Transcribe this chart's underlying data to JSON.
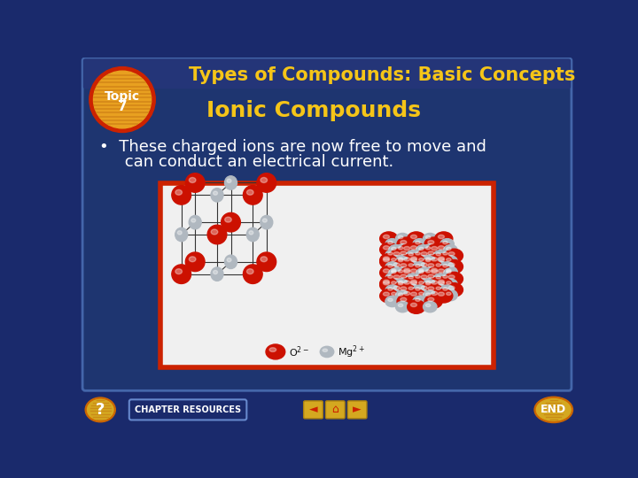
{
  "bg_color": "#1a2a6c",
  "main_panel_color": "#1e3570",
  "panel_border_color": "#4466aa",
  "header_text": "Types of Compounds: Basic Concepts",
  "header_color": "#f5c518",
  "header_fontsize": 15,
  "topic_circle_outer": "#cc2200",
  "topic_circle_inner": "#e8a020",
  "topic_label": "Topic\n7",
  "topic_fontsize": 11,
  "subtitle": "Ionic Compounds",
  "subtitle_color": "#f5c518",
  "subtitle_fontsize": 18,
  "bullet_line1": "•  These charged ions are now free to move and",
  "bullet_line2": "     can conduct an electrical current.",
  "bullet_color": "#ffffff",
  "bullet_fontsize": 13,
  "image_box_border": "#cc2200",
  "image_box_face": "#f0f0f0",
  "red_ball": "#cc1100",
  "grey_ball": "#b0b8c0",
  "footer_text": "CHAPTER RESOURCES",
  "footer_btn_color": "#1a2a6c",
  "footer_btn_border": "#334488",
  "nav_btn_color": "#d4a820",
  "end_btn_color": "#d4a820",
  "q_btn_color": "#d4a820"
}
